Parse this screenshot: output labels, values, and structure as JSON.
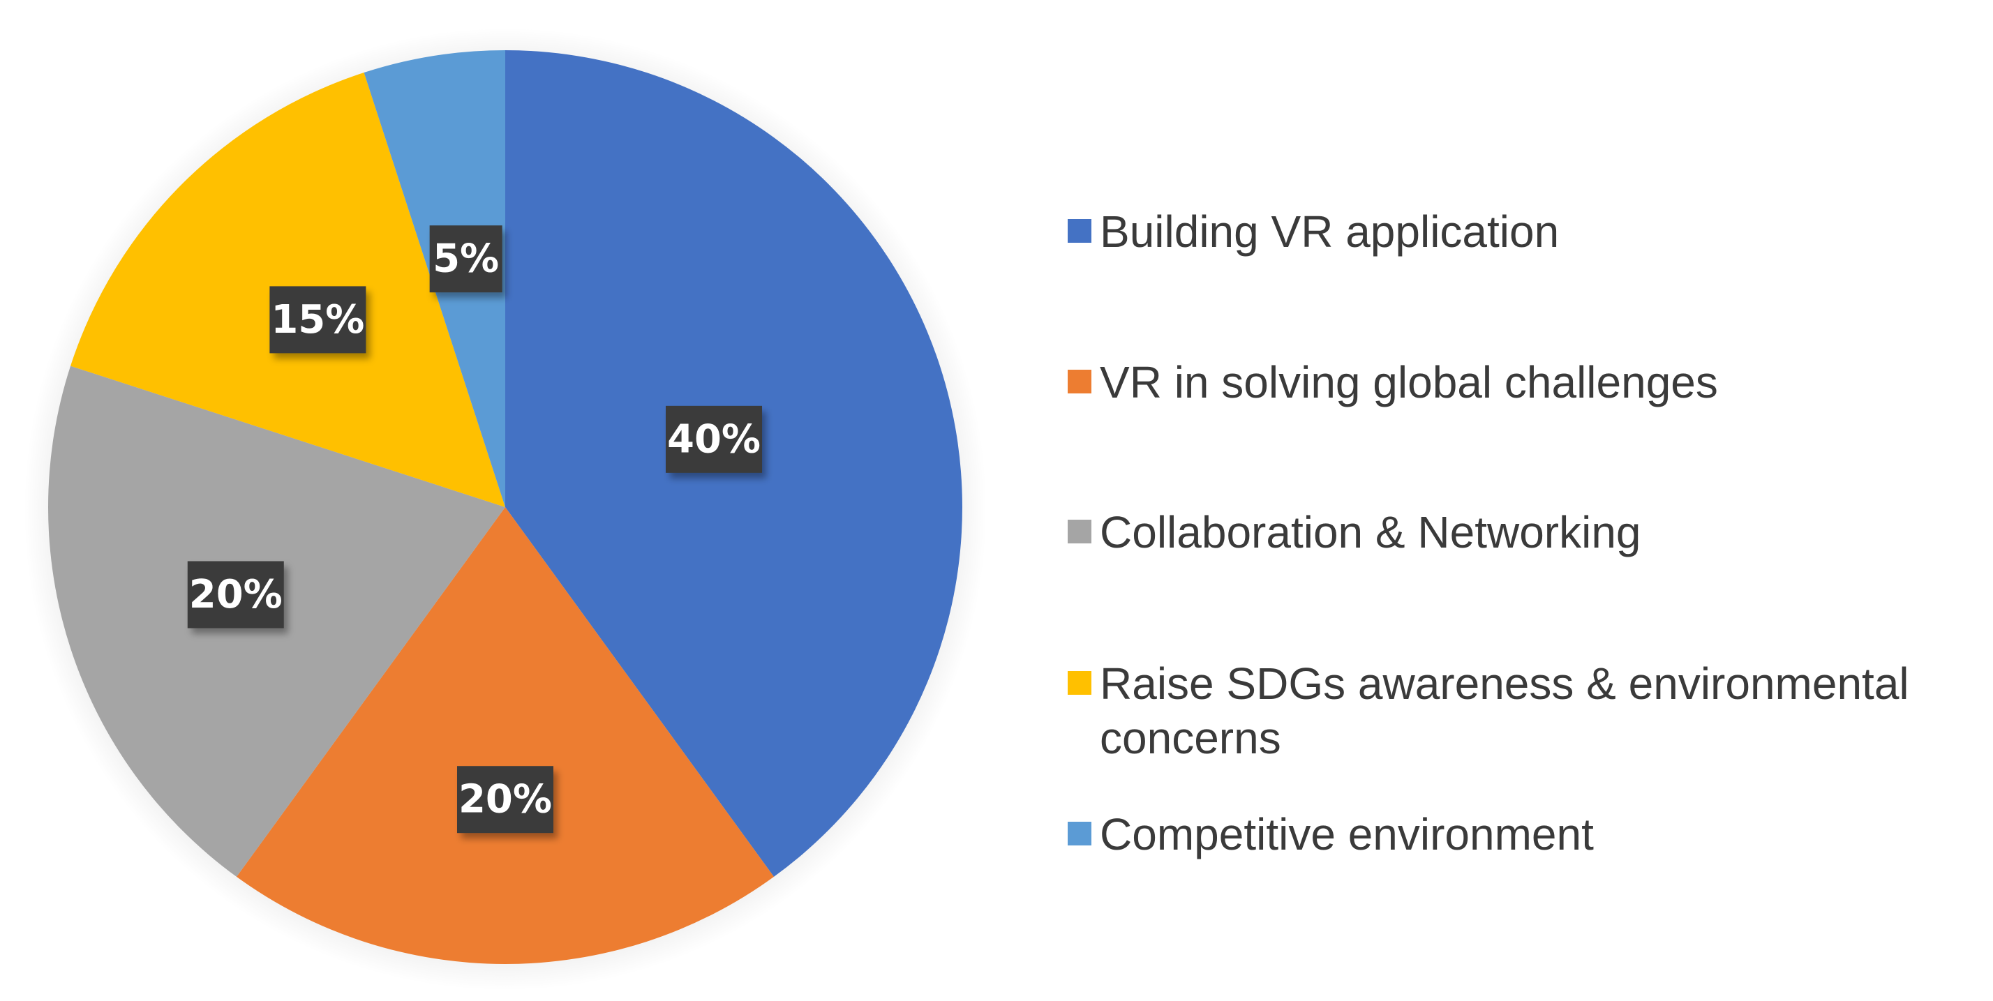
{
  "chart_data": {
    "type": "pie",
    "title": "",
    "slices": [
      {
        "label": "Building VR application",
        "value": 40,
        "data_label": "40%",
        "color": "#4472C4"
      },
      {
        "label": "VR in solving global challenges",
        "value": 20,
        "data_label": "20%",
        "color": "#ED7D31"
      },
      {
        "label": "Collaboration & Networking",
        "value": 20,
        "data_label": "20%",
        "color": "#A5A5A5"
      },
      {
        "label": "Raise SDGs awareness & environmental concerns",
        "value": 15,
        "data_label": "15%",
        "color": "#FFC000"
      },
      {
        "label": "Competitive environment",
        "value": 5,
        "data_label": "5%",
        "color": "#5B9BD5"
      }
    ],
    "start_angle": "12 o'clock",
    "direction": "clockwise",
    "legend_position": "right",
    "data_label_style": {
      "background": "#3a3a3a",
      "text_color": "#ffffff"
    }
  }
}
